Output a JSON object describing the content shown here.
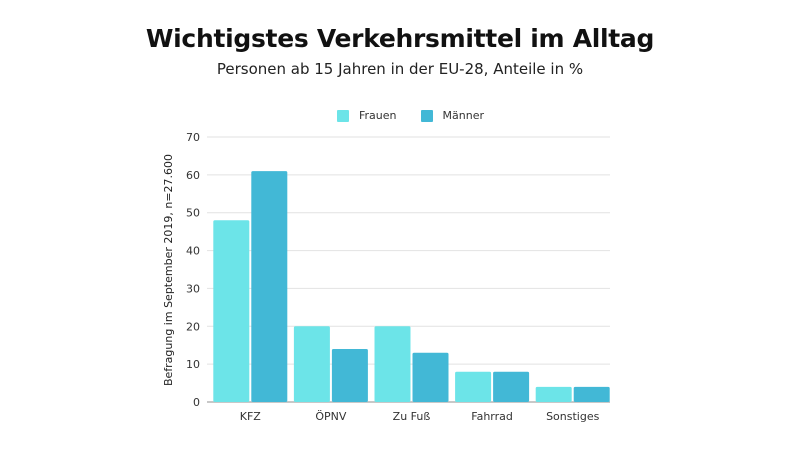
{
  "chart_data": {
    "type": "bar",
    "title": "Wichtigstes Verkehrsmittel im Alltag",
    "subtitle": "Personen ab 15 Jahren in der EU-28, Anteile in %",
    "xlabel": "",
    "ylabel": "Befragung im September 2019, n=27.600",
    "categories": [
      "KFZ",
      "ÖPNV",
      "Zu Fuß",
      "Fahrrad",
      "Sonstiges"
    ],
    "series": [
      {
        "name": "Frauen",
        "color": "#6ce4e8",
        "values": [
          48,
          20,
          20,
          8,
          4
        ]
      },
      {
        "name": "Männer",
        "color": "#42b8d6",
        "values": [
          61,
          14,
          13,
          8,
          4
        ]
      }
    ],
    "ylim": [
      0,
      70
    ],
    "yticks": [
      0,
      10,
      20,
      30,
      40,
      50,
      60,
      70
    ],
    "grid": true,
    "legend_position": "top-center"
  }
}
